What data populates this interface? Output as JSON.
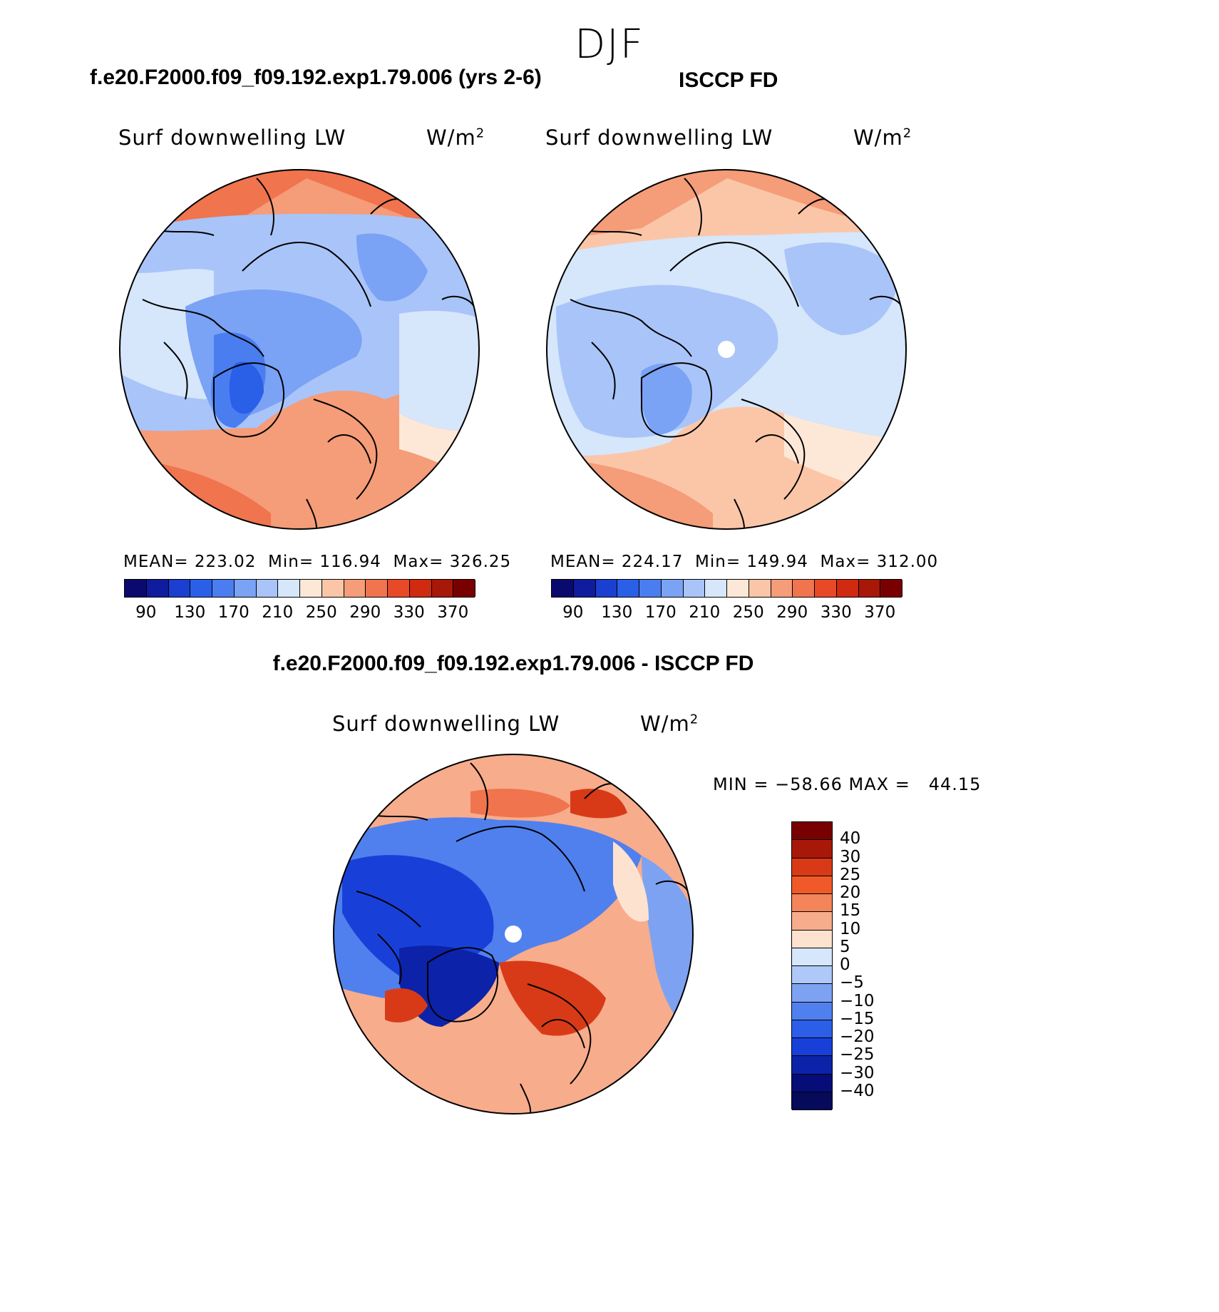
{
  "figure": {
    "season": "DJF",
    "model_title": "f.e20.F2000.f09_f09.192.exp1.79.006 (yrs 2-6)",
    "obs_title": "ISCCP FD",
    "diff_title": "f.e20.F2000.f09_f09.192.exp1.79.006 - ISCCP FD"
  },
  "panels": [
    {
      "id": "model",
      "variable": "Surf downwelling LW",
      "units_base": "W/m",
      "units_exp": "2",
      "stats": {
        "mean_label": "MEAN=",
        "mean": "223.02",
        "min_label": "Min=",
        "min": "116.94",
        "max_label": "Max=",
        "max": "326.25"
      }
    },
    {
      "id": "obs",
      "variable": "Surf downwelling LW",
      "units_base": "W/m",
      "units_exp": "2",
      "stats": {
        "mean_label": "MEAN=",
        "mean": "224.17",
        "min_label": "Min=",
        "min": "149.94",
        "max_label": "Max=",
        "max": "312.00"
      }
    },
    {
      "id": "diff",
      "variable": "Surf downwelling LW",
      "units_base": "W/m",
      "units_exp": "2",
      "stats": {
        "text": "MIN = −58.66 MAX =   44.15"
      }
    }
  ],
  "field_colorbar": {
    "colors": [
      "#0a0a6e",
      "#0f1c9e",
      "#1a3fd1",
      "#2a5fe8",
      "#4a7ef0",
      "#7aa2f5",
      "#a9c4f8",
      "#d6e6fb",
      "#fde8d8",
      "#fbc6a8",
      "#f59c78",
      "#f0744e",
      "#e84a28",
      "#d02a10",
      "#a81808",
      "#780000"
    ],
    "tick_labels": [
      "90",
      "130",
      "170",
      "210",
      "250",
      "290",
      "330",
      "370"
    ]
  },
  "diff_colorbar": {
    "colors": [
      "#780000",
      "#a81808",
      "#d83a18",
      "#f05a28",
      "#f4845a",
      "#f7ac8c",
      "#fde2d0",
      "#d6e6fb",
      "#aec8f8",
      "#7ea2f2",
      "#5080ee",
      "#2c5ee8",
      "#1840d8",
      "#0c22a8",
      "#060c78"
    ],
    "tick_labels": [
      "40",
      "30",
      "25",
      "20",
      "15",
      "10",
      "5",
      "0",
      "−5",
      "−10",
      "−15",
      "−20",
      "−25",
      "−30",
      "−40"
    ]
  }
}
